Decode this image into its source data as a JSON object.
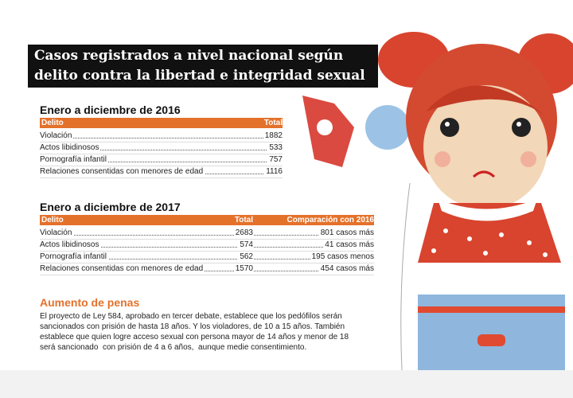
{
  "header": {
    "title_lines": [
      "Casos registrados a nivel nacional según",
      "delito contra la libertad e integridad sexual"
    ]
  },
  "table_2016": {
    "heading": "Enero a diciembre de 2016",
    "columns": [
      "Delito",
      "Total"
    ],
    "rows": [
      [
        "Violación",
        "1882"
      ],
      [
        "Actos libidinosos",
        "533"
      ],
      [
        "Pornografía infantil",
        "757"
      ],
      [
        "Relaciones consentidas con menores de edad",
        "1116"
      ]
    ]
  },
  "table_2017": {
    "heading": "Enero a diciembre de 2017",
    "columns": [
      "Delito",
      "Total",
      "Comparación con 2016"
    ],
    "rows": [
      [
        "Violación",
        "2683",
        "801 casos más"
      ],
      [
        "Actos libidinosos",
        "574",
        "41 casos más"
      ],
      [
        "Pornografía infantil",
        "562",
        "195 casos menos"
      ],
      [
        "Relaciones consentidas con menores de edad",
        "1570",
        "454 casos más"
      ]
    ]
  },
  "section": {
    "title": "Aumento de penas",
    "lines": [
      "El proyecto de Ley 584, aprobado en tercer debate, establece que los pedófilos serán",
      "sancionados con prisión de hasta 18 años. Y los violadores, de 10 a 15 años. También",
      "establece que quien logre acceso sexual con persona mayor de 14 años y menor de 18",
      "será sancionado  con prisión de 4 a 6 años,  aunque medie consentimiento."
    ]
  }
}
